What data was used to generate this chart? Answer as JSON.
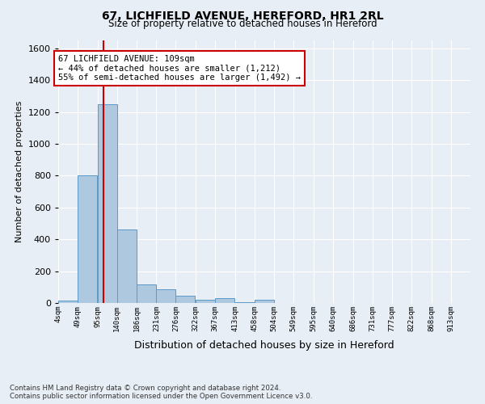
{
  "title": "67, LICHFIELD AVENUE, HEREFORD, HR1 2RL",
  "subtitle": "Size of property relative to detached houses in Hereford",
  "xlabel": "Distribution of detached houses by size in Hereford",
  "ylabel": "Number of detached properties",
  "footer_line1": "Contains HM Land Registry data © Crown copyright and database right 2024.",
  "footer_line2": "Contains public sector information licensed under the Open Government Licence v3.0.",
  "bin_labels": [
    "4sqm",
    "49sqm",
    "95sqm",
    "140sqm",
    "186sqm",
    "231sqm",
    "276sqm",
    "322sqm",
    "367sqm",
    "413sqm",
    "458sqm",
    "504sqm",
    "549sqm",
    "595sqm",
    "640sqm",
    "686sqm",
    "731sqm",
    "777sqm",
    "822sqm",
    "868sqm",
    "913sqm"
  ],
  "bin_edges": [
    4,
    49,
    95,
    140,
    186,
    231,
    276,
    322,
    367,
    413,
    458,
    504,
    549,
    595,
    640,
    686,
    731,
    777,
    822,
    868,
    913
  ],
  "bar_heights": [
    15,
    800,
    1250,
    460,
    115,
    85,
    45,
    20,
    30,
    5,
    20,
    0,
    0,
    0,
    0,
    0,
    0,
    0,
    0,
    0
  ],
  "bar_color": "#aec8e0",
  "bar_edge_color": "#5a9ac8",
  "property_size": 109,
  "vline_color": "#cc0000",
  "annotation_line1": "67 LICHFIELD AVENUE: 109sqm",
  "annotation_line2": "← 44% of detached houses are smaller (1,212)",
  "annotation_line3": "55% of semi-detached houses are larger (1,492) →",
  "annotation_box_color": "#ffffff",
  "annotation_box_edge": "#cc0000",
  "ylim": [
    0,
    1650
  ],
  "yticks": [
    0,
    200,
    400,
    600,
    800,
    1000,
    1200,
    1400,
    1600
  ],
  "background_color": "#e8eef5",
  "grid_color": "#ffffff"
}
